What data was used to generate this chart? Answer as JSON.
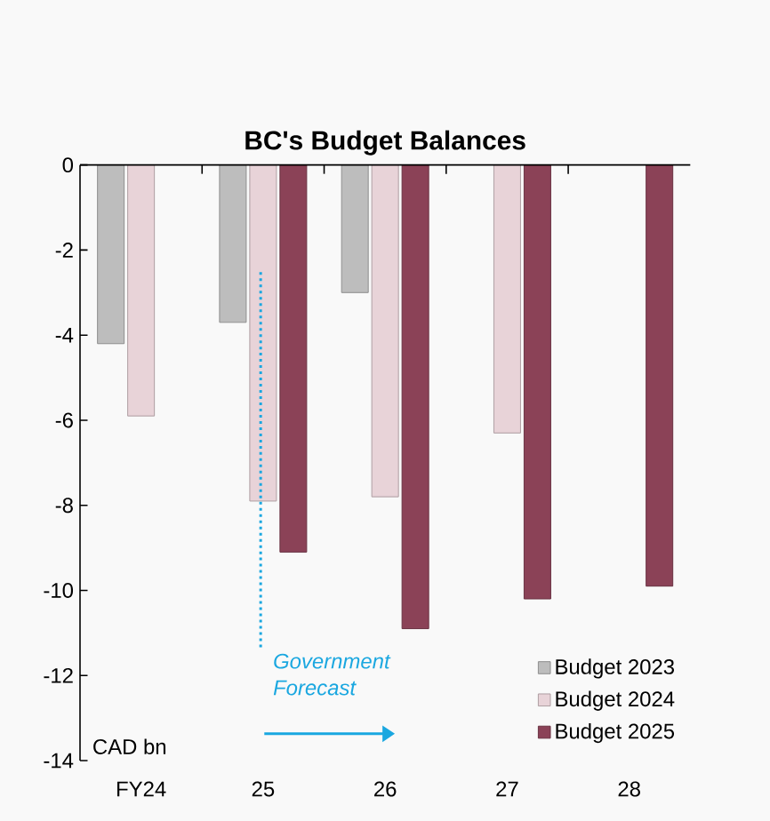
{
  "chart_data": {
    "type": "bar",
    "title": "BC's Budget Balances",
    "categories": [
      "FY24",
      "25",
      "26",
      "27",
      "28"
    ],
    "series": [
      {
        "name": "Budget 2023",
        "color": "#bdbdbd",
        "values": [
          -4.2,
          -3.7,
          -3.0,
          null,
          null
        ]
      },
      {
        "name": "Budget 2024",
        "color": "#e8d3d8",
        "values": [
          -5.9,
          -7.9,
          -7.8,
          -6.3,
          null
        ]
      },
      {
        "name": "Budget 2025",
        "color": "#8b4257",
        "values": [
          null,
          -9.1,
          -10.9,
          -10.2,
          -9.9
        ]
      }
    ],
    "ylim": [
      -14,
      0
    ],
    "yticks": [
      -14,
      -12,
      -10,
      -8,
      -6,
      -4,
      -2,
      0
    ],
    "ref_lines": [
      {
        "axis": "x",
        "value": "25",
        "label": "Government Forecast",
        "color": "#1aa7e0",
        "line_style": "dotted"
      }
    ],
    "annotations": [
      "CAD bn"
    ],
    "legend": "bottom right",
    "grid": false
  }
}
